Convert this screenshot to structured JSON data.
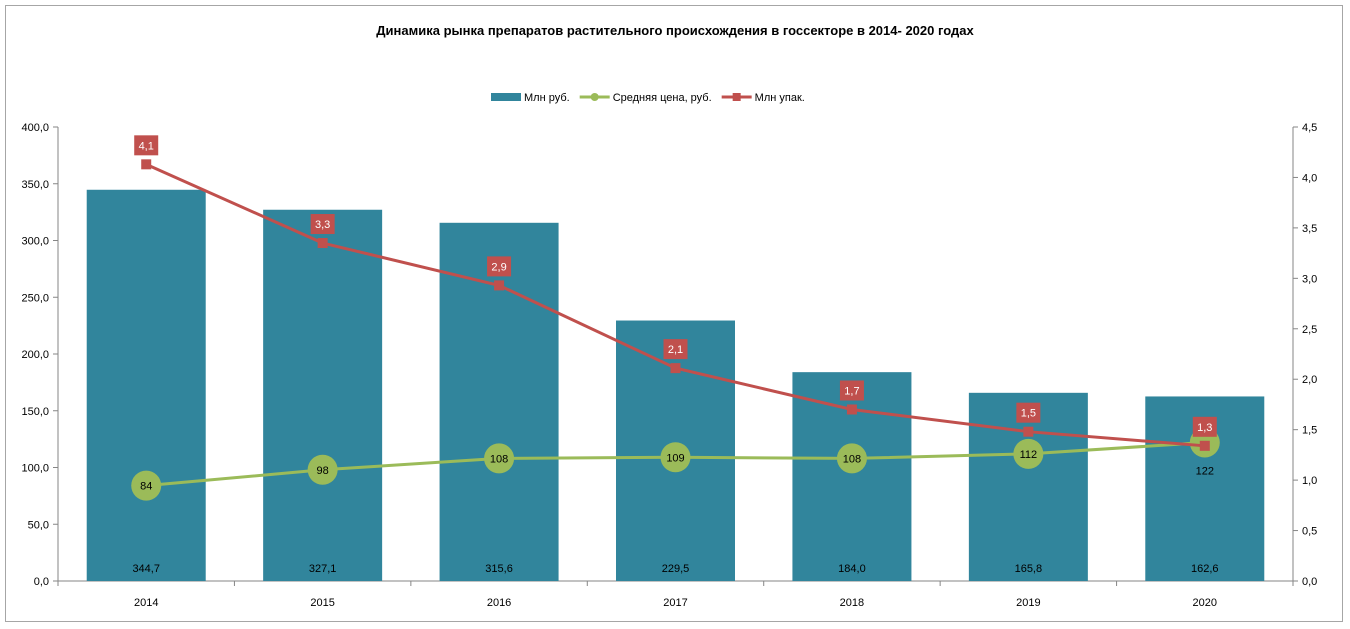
{
  "chart_data": {
    "type": "bar",
    "title": "Динамика рынка препаратов растительного происхождения в госсекторе в 2014- 2020 годах",
    "categories": [
      "2014",
      "2015",
      "2016",
      "2017",
      "2018",
      "2019",
      "2020"
    ],
    "y_left": {
      "min": 0,
      "max": 400,
      "step": 50,
      "ticks": [
        "0,0",
        "50,0",
        "100,0",
        "150,0",
        "200,0",
        "250,0",
        "300,0",
        "350,0",
        "400,0"
      ]
    },
    "y_right": {
      "min": 0,
      "max": 4.5,
      "step": 0.5,
      "ticks": [
        "0,0",
        "0,5",
        "1,0",
        "1,5",
        "2,0",
        "2,5",
        "3,0",
        "3,5",
        "4,0",
        "4,5"
      ]
    },
    "legend_position": "top",
    "grid": false,
    "series": [
      {
        "name": "Млн руб.",
        "type": "bar",
        "axis": "left",
        "color": "#31859c",
        "values": [
          344.7,
          327.1,
          315.6,
          229.5,
          184.0,
          165.8,
          162.6
        ],
        "labels": [
          "344,7",
          "327,1",
          "315,6",
          "229,5",
          "184,0",
          "165,8",
          "162,6"
        ]
      },
      {
        "name": "Средняя  цена, руб.",
        "type": "line",
        "axis": "left",
        "color": "#9bbb59",
        "values": [
          84,
          98,
          108,
          109,
          108,
          112,
          122
        ],
        "labels": [
          "84",
          "98",
          "108",
          "109",
          "108",
          "112",
          "122"
        ]
      },
      {
        "name": "Млн упак.",
        "type": "line",
        "axis": "right",
        "color": "#c0504d",
        "values": [
          4.13,
          3.35,
          2.93,
          2.11,
          1.7,
          1.48,
          1.34
        ],
        "labels": [
          "4,1",
          "3,3",
          "2,9",
          "2,1",
          "1,7",
          "1,5",
          "1,3"
        ]
      }
    ]
  }
}
